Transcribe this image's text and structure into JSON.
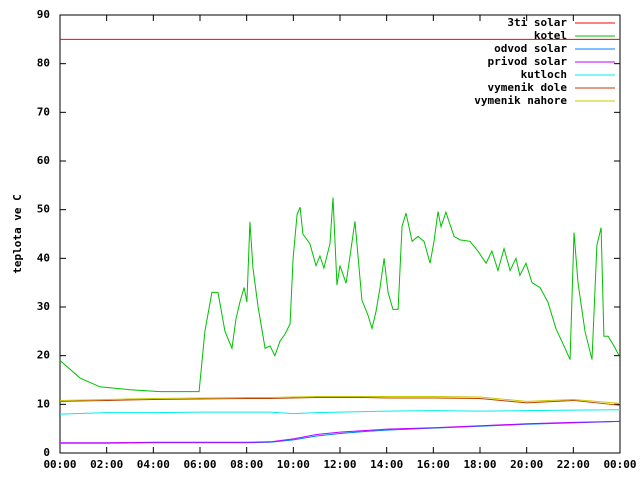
{
  "chart_data": {
    "type": "line",
    "ylabel": "teplota ve C",
    "xlim": [
      0,
      24
    ],
    "xticks": [
      {
        "value": 0,
        "label": "00:00"
      },
      {
        "value": 2,
        "label": "02:00"
      },
      {
        "value": 4,
        "label": "04:00"
      },
      {
        "value": 6,
        "label": "06:00"
      },
      {
        "value": 8,
        "label": "08:00"
      },
      {
        "value": 10,
        "label": "10:00"
      },
      {
        "value": 12,
        "label": "12:00"
      },
      {
        "value": 14,
        "label": "14:00"
      },
      {
        "value": 16,
        "label": "16:00"
      },
      {
        "value": 18,
        "label": "18:00"
      },
      {
        "value": 20,
        "label": "20:00"
      },
      {
        "value": 22,
        "label": "22:00"
      },
      {
        "value": 24,
        "label": "00:00"
      }
    ],
    "ylim": [
      0,
      90
    ],
    "yticks": [
      0,
      10,
      20,
      30,
      40,
      50,
      60,
      70,
      80,
      90
    ],
    "legend": "top-right",
    "series": [
      {
        "name": "3ti solar",
        "color": "#ff0000",
        "x": [
          0,
          24
        ],
        "values": [
          85,
          85
        ]
      },
      {
        "name": "kotel",
        "color": "#00c000",
        "x": [
          0,
          0.86,
          1.71,
          3,
          4.29,
          5.96,
          6.21,
          6.51,
          6.77,
          7.07,
          7.37,
          7.54,
          7.71,
          7.89,
          8.01,
          8.14,
          8.27,
          8.49,
          8.79,
          9,
          9.21,
          9.43,
          9.64,
          9.86,
          9.99,
          10.16,
          10.29,
          10.41,
          10.71,
          10.97,
          11.14,
          11.31,
          11.57,
          11.7,
          11.87,
          12,
          12.26,
          12.43,
          12.64,
          12.94,
          13.2,
          13.37,
          13.54,
          13.71,
          13.89,
          14.06,
          14.27,
          14.49,
          14.66,
          14.83,
          15.09,
          15.34,
          15.6,
          15.86,
          16.03,
          16.2,
          16.33,
          16.54,
          16.71,
          16.89,
          17.14,
          17.57,
          17.91,
          18.26,
          18.51,
          18.77,
          19.03,
          19.29,
          19.54,
          19.71,
          19.97,
          20.23,
          20.57,
          20.91,
          21.26,
          21.6,
          21.86,
          22.03,
          22.2,
          22.5,
          22.8,
          23.01,
          23.19,
          23.31,
          23.49,
          23.74,
          23.96
        ],
        "values": [
          19,
          15.4,
          13.6,
          13,
          12.6,
          12.6,
          25,
          33,
          33,
          25,
          21.5,
          27.5,
          31,
          34,
          31,
          47.5,
          38,
          30,
          21.5,
          22,
          20,
          23,
          24.4,
          26.5,
          40,
          49,
          50.5,
          45,
          43,
          38.5,
          40.5,
          38,
          43,
          52.5,
          34.5,
          38.5,
          34.9,
          40.5,
          47.6,
          31.4,
          28.3,
          25.6,
          29,
          33.8,
          40,
          33,
          29.5,
          29.5,
          46.6,
          49.3,
          43.5,
          44.5,
          43.5,
          39,
          43.5,
          49.6,
          46.5,
          49.5,
          47,
          44.5,
          43.8,
          43.5,
          41.5,
          39,
          41.5,
          37.5,
          42,
          37.5,
          40,
          36.5,
          39,
          35,
          34,
          31,
          25.5,
          22,
          19.2,
          45.3,
          35,
          25,
          19.2,
          42.7,
          46.3,
          24,
          24,
          22,
          20
        ]
      },
      {
        "name": "odvod solar",
        "color": "#0080ff",
        "x": [
          0,
          2,
          4,
          6,
          8,
          9,
          10,
          11,
          12,
          13,
          14,
          16,
          18,
          20,
          22,
          24
        ],
        "values": [
          2,
          2,
          2.1,
          2.1,
          2.1,
          2.2,
          2.7,
          3.5,
          4,
          4.4,
          4.7,
          5.1,
          5.5,
          5.9,
          6.2,
          6.5
        ]
      },
      {
        "name": "privod solar",
        "color": "#c000ff",
        "x": [
          0,
          2,
          4,
          6,
          8,
          9,
          10,
          11,
          12,
          13,
          14,
          16,
          18,
          20,
          22,
          24
        ],
        "values": [
          2.1,
          2.1,
          2.2,
          2.2,
          2.2,
          2.3,
          2.9,
          3.8,
          4.3,
          4.6,
          4.9,
          5.2,
          5.6,
          6,
          6.3,
          6.5
        ]
      },
      {
        "name": "kutloch",
        "color": "#00eeee",
        "x": [
          0,
          2,
          4,
          6,
          8,
          9,
          10,
          11,
          12,
          13,
          14,
          16,
          18,
          20,
          22,
          24
        ],
        "values": [
          8,
          8.3,
          8.3,
          8.4,
          8.4,
          8.4,
          8.1,
          8.3,
          8.4,
          8.5,
          8.6,
          8.7,
          8.6,
          8.7,
          8.8,
          8.9
        ]
      },
      {
        "name": "vymenik dole",
        "color": "#c04000",
        "x": [
          0,
          2,
          4,
          6,
          8,
          9,
          10,
          11,
          12,
          13,
          14,
          16,
          18,
          20,
          22,
          24
        ],
        "values": [
          10.6,
          10.8,
          11,
          11.1,
          11.2,
          11.2,
          11.3,
          11.4,
          11.4,
          11.4,
          11.3,
          11.3,
          11.2,
          10.3,
          10.8,
          9.8
        ]
      },
      {
        "name": "vymenik nahore",
        "color": "#c8c800",
        "x": [
          0,
          2,
          4,
          6,
          8,
          9,
          10,
          11,
          12,
          13,
          14,
          16,
          18,
          20,
          22,
          24
        ],
        "values": [
          10.8,
          11,
          11.2,
          11.3,
          11.4,
          11.4,
          11.5,
          11.6,
          11.6,
          11.6,
          11.6,
          11.6,
          11.5,
          10.6,
          11,
          10.2
        ]
      }
    ]
  }
}
